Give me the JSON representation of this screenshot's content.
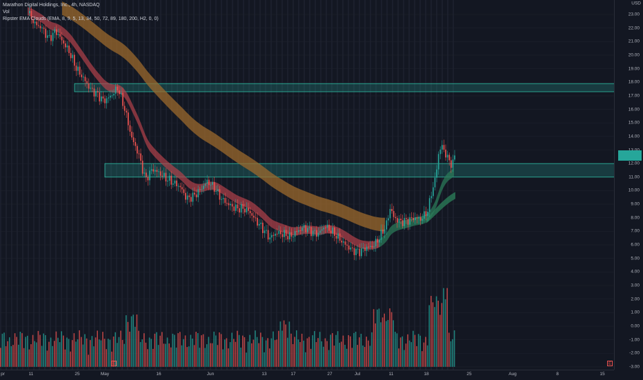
{
  "legend": {
    "symbol_line": "Marathon Digital Holdings, Inc., 4h, NASDAQ",
    "vol_label": "Vol",
    "indicator_line": "Ripster EMA Clouds (EMA, 8, 9, 5, 13, 34, 50, 72, 89, 180, 200, H2, 0, 0)"
  },
  "price_axis": {
    "ticks": [
      "23.00",
      "22.00",
      "21.00",
      "20.00",
      "19.00",
      "18.00",
      "17.00",
      "16.00",
      "15.00",
      "14.00",
      "13.00",
      "12.00",
      "11.00",
      "10.00",
      "9.00",
      "8.00",
      "7.00",
      "6.00",
      "5.00",
      "4.00",
      "3.00",
      "2.00",
      "1.00",
      "0.00",
      "-1.00",
      "-2.00",
      "-3.00"
    ],
    "unit": "USD"
  },
  "time_axis": {
    "ticks": [
      "pr",
      "11",
      "25",
      "May",
      "16",
      "Jun",
      "13",
      "17",
      "27",
      "Jul",
      "11",
      "18",
      "25",
      "Aug",
      "8",
      "15"
    ]
  },
  "earnings_marker": "E",
  "colors": {
    "background": "#131722",
    "up": "#26a69a",
    "down": "#ef5350",
    "zone_fill": "rgba(38,166,154,0.25)",
    "zone_border": "#2fbfa6",
    "slow_cloud": "#9c6a2c",
    "fast_cloud_down": "#b2424a",
    "fast_cloud_up": "#2b7a58"
  },
  "chart_data": {
    "type": "candlestick",
    "symbol": "Marathon Digital Holdings, Inc., 4h, NASDAQ",
    "ylim": [
      -3,
      23.5
    ],
    "zones": [
      {
        "low": 17.3,
        "high": 17.9
      },
      {
        "low": 11.0,
        "high": 12.0
      }
    ],
    "last_price": 13.0,
    "price_path": [
      [
        0,
        24.2
      ],
      [
        10,
        23.4
      ],
      [
        20,
        22.8
      ],
      [
        30,
        22.5
      ],
      [
        40,
        23.1
      ],
      [
        50,
        22.3
      ],
      [
        60,
        22.0
      ],
      [
        70,
        21.2
      ],
      [
        80,
        21.8
      ],
      [
        90,
        21.0
      ],
      [
        100,
        20.2
      ],
      [
        110,
        19.0
      ],
      [
        120,
        18.3
      ],
      [
        130,
        17.5
      ],
      [
        140,
        17.1
      ],
      [
        150,
        16.6
      ],
      [
        160,
        17.0
      ],
      [
        170,
        17.6
      ],
      [
        180,
        16.0
      ],
      [
        190,
        13.9
      ],
      [
        200,
        12.7
      ],
      [
        210,
        10.8
      ],
      [
        220,
        11.6
      ],
      [
        230,
        11.3
      ],
      [
        240,
        10.9
      ],
      [
        250,
        10.6
      ],
      [
        260,
        10.3
      ],
      [
        270,
        9.4
      ],
      [
        280,
        9.6
      ],
      [
        290,
        10.1
      ],
      [
        300,
        10.7
      ],
      [
        310,
        10.2
      ],
      [
        320,
        9.4
      ],
      [
        330,
        9.0
      ],
      [
        340,
        8.7
      ],
      [
        350,
        8.7
      ],
      [
        360,
        8.5
      ],
      [
        370,
        7.8
      ],
      [
        380,
        7.2
      ],
      [
        390,
        6.5
      ],
      [
        400,
        6.9
      ],
      [
        410,
        6.8
      ],
      [
        420,
        6.6
      ],
      [
        430,
        7.0
      ],
      [
        440,
        7.3
      ],
      [
        450,
        7.0
      ],
      [
        460,
        6.8
      ],
      [
        470,
        7.4
      ],
      [
        480,
        7.0
      ],
      [
        490,
        6.5
      ],
      [
        500,
        6.0
      ],
      [
        510,
        5.6
      ],
      [
        520,
        5.5
      ],
      [
        530,
        5.8
      ],
      [
        540,
        5.9
      ],
      [
        550,
        6.6
      ],
      [
        560,
        7.6
      ],
      [
        565,
        8.8
      ],
      [
        570,
        8.0
      ],
      [
        580,
        7.7
      ],
      [
        590,
        7.8
      ],
      [
        600,
        8.0
      ],
      [
        610,
        7.9
      ],
      [
        620,
        8.6
      ],
      [
        625,
        10.0
      ],
      [
        630,
        10.8
      ],
      [
        635,
        12.8
      ],
      [
        640,
        13.3
      ],
      [
        645,
        12.7
      ],
      [
        650,
        12.2
      ],
      [
        655,
        11.9
      ],
      [
        660,
        12.9
      ]
    ],
    "volume_scale_note": "volume shown on price scale region below 4.00"
  }
}
